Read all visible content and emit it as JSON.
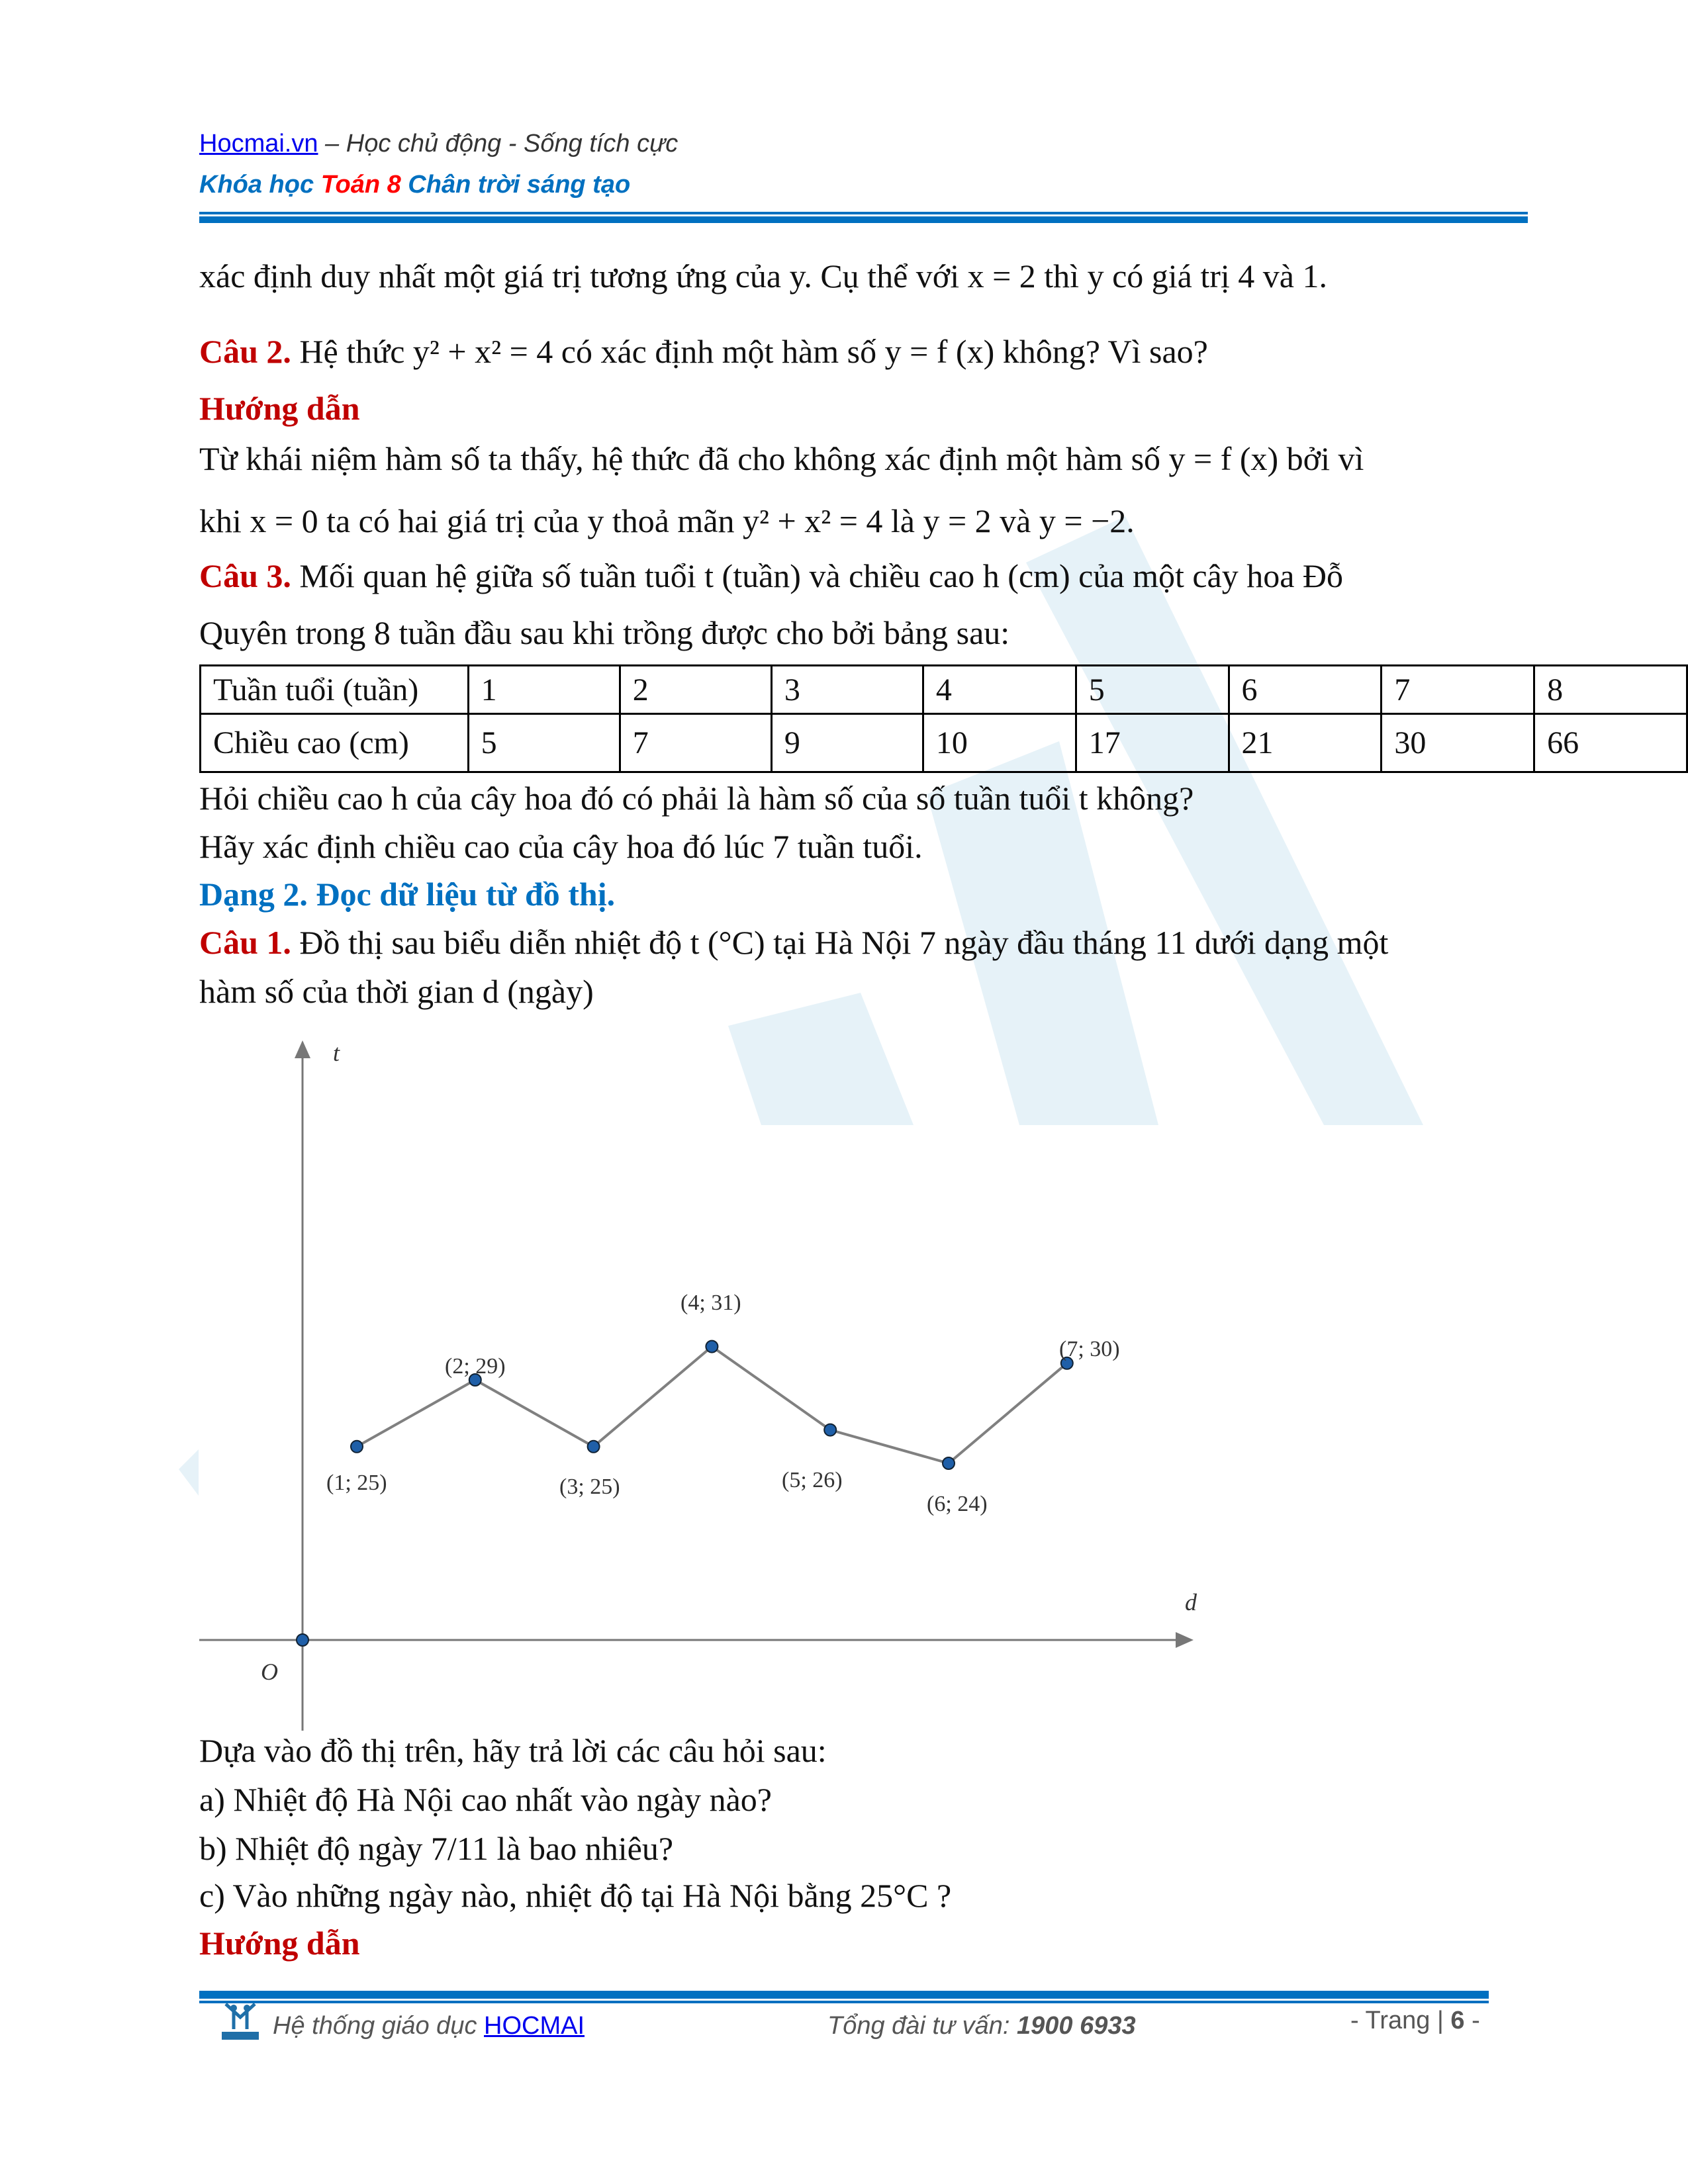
{
  "header": {
    "site_link": "Hocmai.vn",
    "slogan": " – Học chủ động - Sống tích cực",
    "course_prefix": "Khóa học ",
    "course_highlight": "Toán 8",
    "course_suffix": " Chân trời sáng tạo"
  },
  "body": {
    "line1": "xác định duy nhất một giá trị tương ứng của  y.  Cụ thể với  x = 2  thì  y  có giá trị  4  và 1.",
    "q2_label": "Câu 2.",
    "q2_text": " Hệ thức  y² + x² = 4  có xác định một hàm số  y = f (x)  không? Vì sao?",
    "guide1": "Hướng dẫn",
    "ans_line1": "Từ khái niệm hàm số ta thấy, hệ thức đã cho không xác định một hàm số  y = f (x)  bởi vì",
    "ans_line2": "khi  x = 0  ta có hai giá trị của  y  thoả mãn  y² + x² = 4  là  y = 2  và  y = −2.",
    "q3_label": "Câu 3.",
    "q3_text": " Mối quan hệ giữa số tuần tuổi  t  (tuần) và chiều cao  h  (cm)  của một cây hoa Đỗ",
    "q3_line2": "Quyên trong 8 tuần đầu sau khi trồng được cho bởi bảng sau:",
    "table": {
      "row1_header": "Tuần tuổi (tuần)",
      "row1": [
        "1",
        "2",
        "3",
        "4",
        "5",
        "6",
        "7",
        "8"
      ],
      "row2_header": "Chiều cao (cm)",
      "row2": [
        "5",
        "7",
        "9",
        "10",
        "17",
        "21",
        "30",
        "66"
      ]
    },
    "q3_ask1": "Hỏi chiều cao  h  của cây hoa đó có phải là hàm số của số tuần tuổi  t  không?",
    "q3_ask2": "Hãy xác định chiều cao của cây hoa đó lúc 7 tuần tuổi.",
    "section": "Dạng 2. Đọc dữ liệu từ đồ thị.",
    "q1_label": "Câu 1.",
    "q1_text": " Đồ thị sau biểu diễn nhiệt độ  t  (°C) tại Hà Nội 7 ngày đầu tháng 11 dưới dạng một",
    "q1_line2": "hàm số của thời gian  d  (ngày)",
    "ask_intro": "Dựa vào đồ thị trên, hãy trả lời các câu hỏi sau:",
    "ask_a": "a) Nhiệt độ Hà Nội cao nhất vào ngày nào?",
    "ask_b": "b) Nhiệt độ ngày 7/11 là bao nhiêu?",
    "ask_c": "c) Vào những ngày nào, nhiệt độ tại Hà Nội bằng  25°C ?",
    "guide2": "Hướng dẫn"
  },
  "chart_data": {
    "type": "line",
    "xlabel": "d",
    "ylabel": "t",
    "origin_label": "O",
    "x": [
      1,
      2,
      3,
      4,
      5,
      6,
      7
    ],
    "values": [
      25,
      29,
      25,
      31,
      26,
      24,
      30
    ],
    "point_labels": [
      "(1; 25)",
      "(2; 29)",
      "(3; 25)",
      "(4; 31)",
      "(5; 26)",
      "(6; 24)",
      "(7; 30)"
    ],
    "line_color": "#808080",
    "point_color": "#1f5fa8"
  },
  "footer": {
    "system_text": "Hệ thống giáo dục ",
    "system_link": "HOCMAI",
    "hotline_label": "Tổng đài tư vấn: ",
    "hotline_number": "1900 6933",
    "page_prefix": "- Trang | ",
    "page_number": "6",
    "page_suffix": " -",
    "logo_text": "HOCMAI"
  },
  "colors": {
    "brand_blue": "#0070c0",
    "accent_red": "#c00000"
  }
}
